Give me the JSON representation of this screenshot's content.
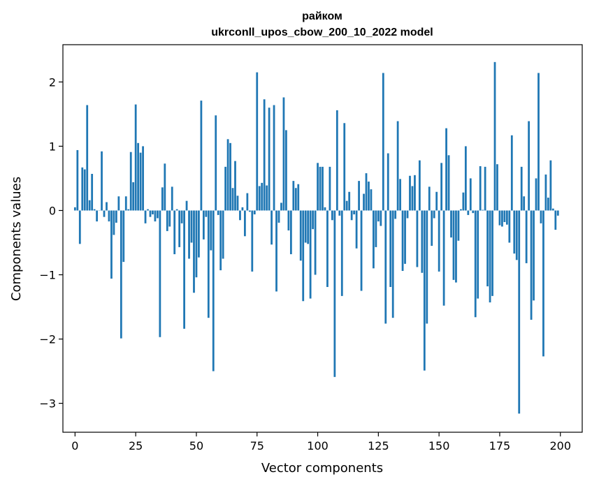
{
  "chart_data": {
    "type": "bar",
    "title": "райком",
    "subtitle": "ukrconll_upos_cbow_200_10_2022 model",
    "xlabel": "Vector components",
    "ylabel": "Components values",
    "xlim": [
      -5,
      209
    ],
    "ylim": [
      -3.45,
      2.58
    ],
    "x_ticks": [
      0,
      25,
      50,
      75,
      100,
      125,
      150,
      175,
      200
    ],
    "x_tick_labels": [
      "0",
      "25",
      "50",
      "75",
      "100",
      "125",
      "150",
      "175",
      "200"
    ],
    "y_ticks": [
      -3,
      -2,
      -1,
      0,
      1,
      2
    ],
    "y_tick_labels": [
      "−3",
      "−2",
      "−1",
      "0",
      "1",
      "2"
    ],
    "grid": false,
    "bar_color": "#1f77b4",
    "x": [
      0,
      1,
      2,
      3,
      4,
      5,
      6,
      7,
      8,
      9,
      10,
      11,
      12,
      13,
      14,
      15,
      16,
      17,
      18,
      19,
      20,
      21,
      22,
      23,
      24,
      25,
      26,
      27,
      28,
      29,
      30,
      31,
      32,
      33,
      34,
      35,
      36,
      37,
      38,
      39,
      40,
      41,
      42,
      43,
      44,
      45,
      46,
      47,
      48,
      49,
      50,
      51,
      52,
      53,
      54,
      55,
      56,
      57,
      58,
      59,
      60,
      61,
      62,
      63,
      64,
      65,
      66,
      67,
      68,
      69,
      70,
      71,
      72,
      73,
      74,
      75,
      76,
      77,
      78,
      79,
      80,
      81,
      82,
      83,
      84,
      85,
      86,
      87,
      88,
      89,
      90,
      91,
      92,
      93,
      94,
      95,
      96,
      97,
      98,
      99,
      100,
      101,
      102,
      103,
      104,
      105,
      106,
      107,
      108,
      109,
      110,
      111,
      112,
      113,
      114,
      115,
      116,
      117,
      118,
      119,
      120,
      121,
      122,
      123,
      124,
      125,
      126,
      127,
      128,
      129,
      130,
      131,
      132,
      133,
      134,
      135,
      136,
      137,
      138,
      139,
      140,
      141,
      142,
      143,
      144,
      145,
      146,
      147,
      148,
      149,
      150,
      151,
      152,
      153,
      154,
      155,
      156,
      157,
      158,
      159,
      160,
      161,
      162,
      163,
      164,
      165,
      166,
      167,
      168,
      169,
      170,
      171,
      172,
      173,
      174,
      175,
      176,
      177,
      178,
      179,
      180,
      181,
      182,
      183,
      184,
      185,
      186,
      187,
      188,
      189,
      190,
      191,
      192,
      193,
      194,
      195,
      196,
      197,
      198,
      199
    ],
    "values": [
      0.05,
      0.94,
      -0.52,
      0.67,
      0.64,
      1.64,
      0.16,
      0.57,
      0.02,
      -0.17,
      0.0,
      0.92,
      -0.1,
      0.13,
      -0.17,
      -1.06,
      -0.38,
      -0.19,
      0.22,
      -1.99,
      -0.8,
      0.22,
      0.02,
      0.91,
      0.44,
      1.65,
      1.05,
      0.9,
      1.0,
      -0.2,
      0.02,
      -0.1,
      -0.06,
      -0.17,
      -0.12,
      -1.97,
      0.36,
      0.73,
      -0.32,
      -0.25,
      0.37,
      -0.68,
      0.02,
      -0.57,
      -0.2,
      -1.84,
      0.15,
      -0.75,
      -0.5,
      -1.28,
      -1.04,
      -0.73,
      1.71,
      -0.45,
      -0.1,
      -1.67,
      -0.62,
      -2.5,
      1.48,
      -0.07,
      -0.93,
      -0.75,
      0.68,
      1.11,
      1.05,
      0.35,
      0.77,
      0.23,
      -0.15,
      0.05,
      -0.4,
      0.27,
      -0.02,
      -0.95,
      -0.06,
      2.15,
      0.38,
      0.43,
      1.73,
      0.39,
      1.6,
      -0.53,
      1.64,
      -1.26,
      -0.19,
      0.12,
      1.76,
      1.25,
      -0.31,
      -0.68,
      0.46,
      0.35,
      0.41,
      -0.78,
      -1.41,
      -0.5,
      -0.52,
      -1.37,
      -0.29,
      -1.0,
      0.74,
      0.68,
      0.68,
      0.05,
      -1.19,
      0.68,
      -0.15,
      -2.59,
      1.56,
      -0.08,
      -1.33,
      1.36,
      0.15,
      0.29,
      -0.15,
      -0.06,
      -0.59,
      0.46,
      -1.25,
      0.26,
      0.58,
      0.45,
      0.33,
      -0.9,
      -0.57,
      -0.17,
      -0.24,
      2.14,
      -1.76,
      0.89,
      -1.19,
      -1.67,
      -0.13,
      1.39,
      0.49,
      -0.94,
      -0.83,
      -0.12,
      0.54,
      0.38,
      0.55,
      -0.88,
      0.78,
      -0.97,
      -2.49,
      -1.76,
      0.37,
      -0.55,
      -0.12,
      0.29,
      -0.95,
      0.74,
      -1.48,
      1.28,
      0.86,
      -0.42,
      -1.08,
      -1.12,
      -0.47,
      0.02,
      0.28,
      1.0,
      -0.07,
      0.5,
      -0.04,
      -1.66,
      -1.37,
      0.69,
      0.01,
      0.68,
      -1.18,
      -1.43,
      -1.33,
      2.31,
      0.72,
      -0.23,
      -0.25,
      -0.18,
      -0.22,
      -0.5,
      1.17,
      -0.67,
      -0.77,
      -3.16,
      0.68,
      0.22,
      -0.82,
      1.39,
      -1.7,
      -1.4,
      0.5,
      2.14,
      -0.2,
      -2.27,
      0.56,
      0.2,
      0.78,
      0.03,
      -0.3,
      -0.08
    ]
  }
}
